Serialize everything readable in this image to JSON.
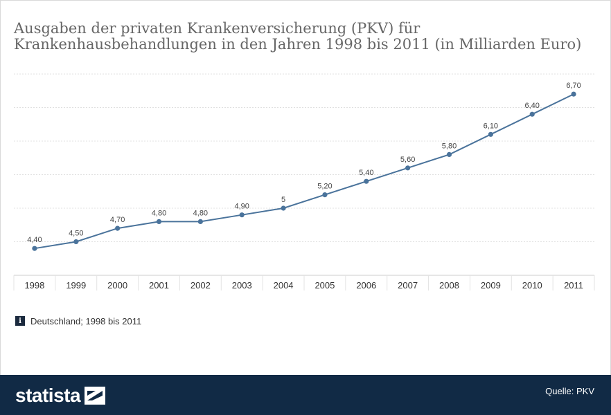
{
  "title": "Ausgaben der privaten Krankenversicherung (PKV) für Krankenhausbehandlungen in den Jahren 1998 bis 2011 (in Milliarden Euro)",
  "note": {
    "icon": "info-icon",
    "icon_glyph": "i",
    "text": "Deutschland; 1998 bis 2011"
  },
  "footer": {
    "logo_text": "statista",
    "logo_icon": "statista-logo-icon",
    "source": "Quelle: PKV",
    "background": "#112a45"
  },
  "colors": {
    "line": "#4a739b",
    "grid": "#e0e0e0",
    "axis": "#cccccc"
  },
  "chart_data": {
    "type": "line",
    "x": [
      "1998",
      "1999",
      "2000",
      "2001",
      "2002",
      "2003",
      "2004",
      "2005",
      "2006",
      "2007",
      "2008",
      "2009",
      "2010",
      "2011"
    ],
    "series": [
      {
        "values": [
          4.4,
          4.5,
          4.7,
          4.8,
          4.8,
          4.9,
          5.0,
          5.2,
          5.4,
          5.6,
          5.8,
          6.1,
          6.4,
          6.7
        ],
        "labels": [
          "4,40",
          "4,50",
          "4,70",
          "4,80",
          "4,80",
          "4,90",
          "5",
          "5,20",
          "5,40",
          "5,60",
          "5,80",
          "6,10",
          "6,40",
          "6,70"
        ]
      }
    ],
    "ylim": [
      4,
      7
    ],
    "grid": true,
    "y_tick_labels_shown": false
  }
}
